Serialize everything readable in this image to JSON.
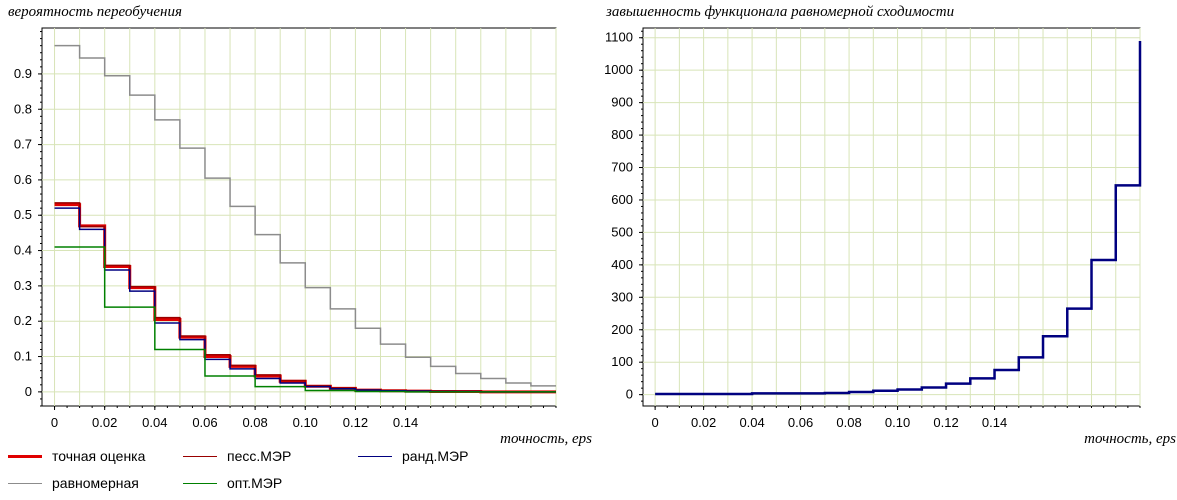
{
  "chart_data": [
    {
      "type": "line",
      "title": "вероятность переобучения",
      "xlabel": "точность, eps",
      "ylabel": "",
      "xlim": [
        -0.005,
        0.2
      ],
      "ylim": [
        -0.04,
        1.03
      ],
      "x_ticks": [
        "0",
        "0.02",
        "0.04",
        "0.06",
        "0.08",
        "0.10",
        "0.12",
        "0.14"
      ],
      "y_ticks": [
        "0",
        "0.1",
        "0.2",
        "0.3",
        "0.4",
        "0.5",
        "0.6",
        "0.7",
        "0.8",
        "0.9"
      ],
      "grid": true,
      "legend_position": "bottom",
      "series": [
        {
          "name": "точная оценка",
          "color": "#e00000",
          "width": 3,
          "x": [
            0,
            0.01,
            0.02,
            0.03,
            0.04,
            0.05,
            0.06,
            0.07,
            0.08,
            0.09,
            0.1,
            0.11,
            0.12,
            0.13,
            0.14,
            0.15,
            0.16,
            0.17,
            0.18,
            0.19,
            0.2
          ],
          "y": [
            0.53,
            0.47,
            0.355,
            0.295,
            0.205,
            0.155,
            0.1,
            0.072,
            0.045,
            0.03,
            0.016,
            0.01,
            0.005,
            0.003,
            0.002,
            0.001,
            0.001,
            0,
            0,
            0,
            0
          ]
        },
        {
          "name": "песс.МЭР",
          "color": "#990000",
          "width": 1.5,
          "x": [
            0,
            0.01,
            0.02,
            0.03,
            0.04,
            0.05,
            0.06,
            0.07,
            0.08,
            0.09,
            0.1,
            0.11,
            0.12,
            0.13,
            0.14,
            0.15,
            0.16,
            0.17,
            0.18,
            0.19,
            0.2
          ],
          "y": [
            0.535,
            0.468,
            0.358,
            0.298,
            0.21,
            0.158,
            0.105,
            0.075,
            0.048,
            0.032,
            0.017,
            0.011,
            0.006,
            0.004,
            0.003,
            0.002,
            0.001,
            0,
            0,
            0,
            0
          ]
        },
        {
          "name": "ранд.МЭР",
          "color": "#000080",
          "width": 1.5,
          "x": [
            0,
            0.01,
            0.02,
            0.03,
            0.04,
            0.05,
            0.06,
            0.07,
            0.08,
            0.09,
            0.1,
            0.11,
            0.12,
            0.13,
            0.14,
            0.15,
            0.16,
            0.17,
            0.18,
            0.19,
            0.2
          ],
          "y": [
            0.52,
            0.46,
            0.345,
            0.285,
            0.195,
            0.148,
            0.092,
            0.065,
            0.038,
            0.025,
            0.015,
            0.009,
            0.005,
            0.003,
            0.002,
            0.001,
            0.001,
            0,
            0,
            0,
            0
          ]
        },
        {
          "name": "равномерная",
          "color": "#8c8c8c",
          "width": 1.5,
          "x": [
            0,
            0.01,
            0.02,
            0.03,
            0.04,
            0.05,
            0.06,
            0.07,
            0.08,
            0.09,
            0.1,
            0.11,
            0.12,
            0.13,
            0.14,
            0.15,
            0.16,
            0.17,
            0.18,
            0.19,
            0.2
          ],
          "y": [
            0.98,
            0.945,
            0.895,
            0.84,
            0.77,
            0.69,
            0.605,
            0.525,
            0.445,
            0.365,
            0.295,
            0.235,
            0.18,
            0.135,
            0.098,
            0.072,
            0.052,
            0.038,
            0.025,
            0.017,
            0.017
          ]
        },
        {
          "name": "опт.МЭР",
          "color": "#008000",
          "width": 1.5,
          "x": [
            0,
            0.01,
            0.02,
            0.03,
            0.04,
            0.05,
            0.06,
            0.07,
            0.08,
            0.09,
            0.1,
            0.11,
            0.12,
            0.13,
            0.14,
            0.15,
            0.16,
            0.17,
            0.18,
            0.19,
            0.2
          ],
          "y": [
            0.41,
            0.41,
            0.24,
            0.24,
            0.12,
            0.12,
            0.045,
            0.045,
            0.015,
            0.015,
            0.004,
            0.004,
            0.001,
            0.001,
            0,
            0,
            0,
            0,
            0,
            0,
            0
          ]
        }
      ]
    },
    {
      "type": "line",
      "title": "завышенность функционала равномерной сходимости",
      "xlabel": "точность, eps",
      "ylabel": "",
      "xlim": [
        -0.005,
        0.2
      ],
      "ylim": [
        -35,
        1130
      ],
      "x_ticks": [
        "0",
        "0.02",
        "0.04",
        "0.06",
        "0.08",
        "0.10",
        "0.12",
        "0.14"
      ],
      "y_ticks": [
        "0",
        "100",
        "200",
        "300",
        "400",
        "500",
        "600",
        "700",
        "800",
        "900",
        "1000",
        "1100"
      ],
      "grid": true,
      "series": [
        {
          "name": "",
          "color": "#000080",
          "width": 2.5,
          "x": [
            0,
            0.01,
            0.02,
            0.03,
            0.04,
            0.05,
            0.06,
            0.07,
            0.08,
            0.09,
            0.1,
            0.11,
            0.12,
            0.13,
            0.14,
            0.15,
            0.16,
            0.17,
            0.18,
            0.19,
            0.2
          ],
          "y": [
            2,
            2,
            2,
            2,
            4,
            4,
            4,
            5,
            8,
            12,
            16,
            22,
            34,
            50,
            76,
            115,
            180,
            265,
            415,
            645,
            1090
          ]
        }
      ]
    }
  ]
}
